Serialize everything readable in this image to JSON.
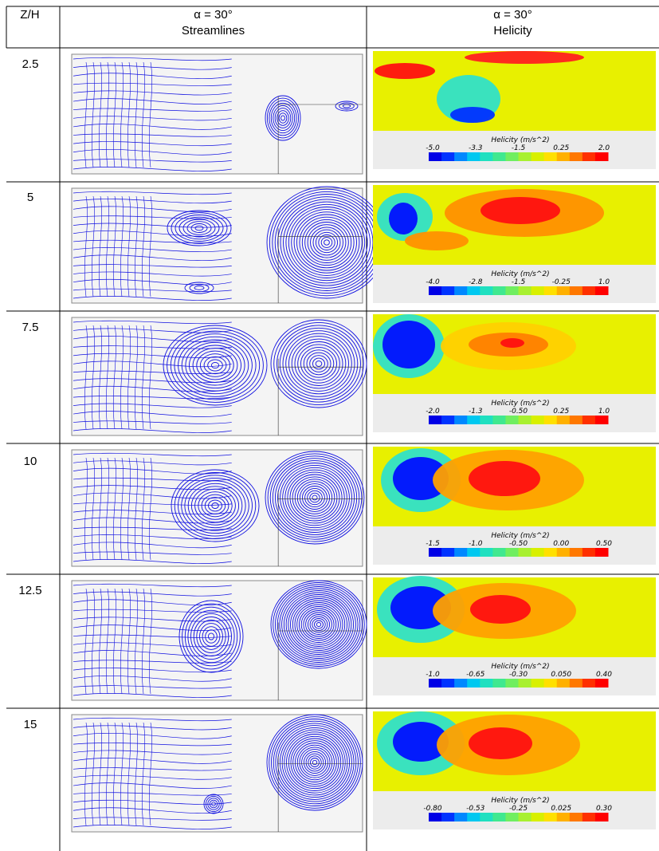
{
  "table": {
    "col1_header": "Z/H",
    "col2_header_line1": "α = 30°",
    "col2_header_line2": "Streamlines",
    "col3_header_line1": "α = 30°",
    "col3_header_line2": "Helicity",
    "rows": [
      {
        "zh": "2.5",
        "legend_title": "Helicity (m/s^2)",
        "ticks": [
          "-5.0",
          "-3.3",
          "-1.5",
          "0.25",
          "2.0"
        ]
      },
      {
        "zh": "5",
        "legend_title": "Helicity (m/s^2)",
        "ticks": [
          "-4.0",
          "-2.8",
          "-1.5",
          "-0.25",
          "1.0"
        ]
      },
      {
        "zh": "7.5",
        "legend_title": "Helicity (m/s^2)",
        "ticks": [
          "-2.0",
          "-1.3",
          "-0.50",
          "0.25",
          "1.0"
        ]
      },
      {
        "zh": "10",
        "legend_title": "Helicity (m/s^2)",
        "ticks": [
          "-1.5",
          "-1.0",
          "-0.50",
          "0.00",
          "0.50"
        ]
      },
      {
        "zh": "12.5",
        "legend_title": "Helicity (m/s^2)",
        "ticks": [
          "-1.0",
          "-0.65",
          "-0.30",
          "0.050",
          "0.40"
        ]
      },
      {
        "zh": "15",
        "legend_title": "Helicity (m/s^2)",
        "ticks": [
          "-0.80",
          "-0.53",
          "-0.25",
          "0.025",
          "0.30"
        ]
      }
    ]
  },
  "colors": {
    "streamline": "#1010e0",
    "helicity_bg": "#e8f000",
    "legend_scale": [
      "#0000e6",
      "#0033ff",
      "#0088ff",
      "#00c8f0",
      "#20e0c0",
      "#40e890",
      "#70ee60",
      "#a8f030",
      "#d8f000",
      "#ffe000",
      "#ffb000",
      "#ff7800",
      "#ff3000",
      "#ff0000"
    ]
  }
}
